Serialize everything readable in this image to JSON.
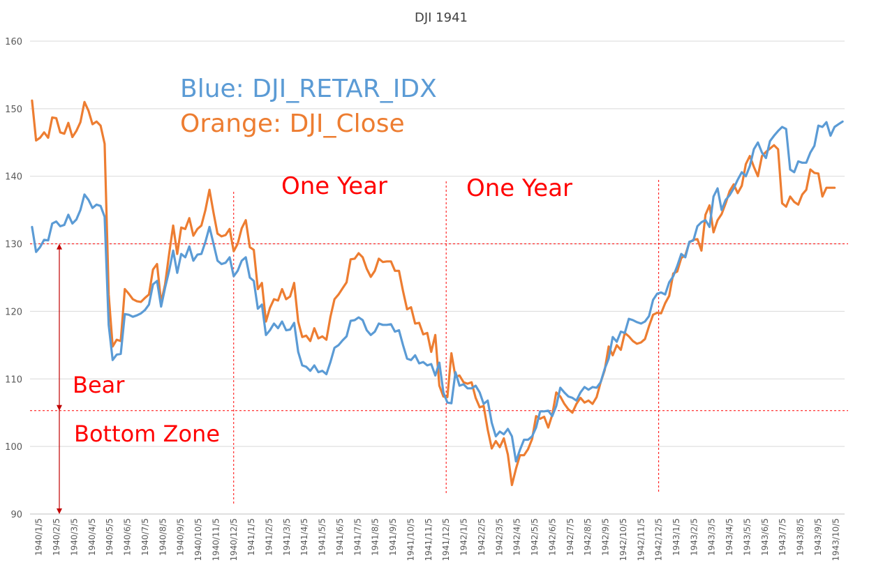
{
  "chart_data": {
    "type": "line",
    "title": "DJI 1941",
    "xlabel": "",
    "ylabel": "",
    "ylim": [
      90,
      160
    ],
    "yticks": [
      90,
      100,
      110,
      120,
      130,
      140,
      150,
      160
    ],
    "grid": "horizontal",
    "x_tick_labels": [
      "1940/1/5",
      "1940/2/5",
      "1940/3/5",
      "1940/4/5",
      "1940/5/5",
      "1940/6/5",
      "1940/7/5",
      "1940/8/5",
      "1940/9/5",
      "1940/10/5",
      "1940/11/5",
      "1940/12/5",
      "1941/1/5",
      "1941/2/5",
      "1941/3/5",
      "1941/4/5",
      "1941/5/5",
      "1941/6/5",
      "1941/7/5",
      "1941/8/5",
      "1941/9/5",
      "1941/10/5",
      "1941/11/5",
      "1941/12/5",
      "1942/1/5",
      "1942/2/5",
      "1942/3/5",
      "1942/4/5",
      "1942/5/5",
      "1942/6/5",
      "1942/7/5",
      "1942/8/5",
      "1942/9/5",
      "1942/10/5",
      "1942/11/5",
      "1942/12/5",
      "1943/1/5",
      "1943/2/5",
      "1943/3/5",
      "1943/4/5",
      "1943/5/5",
      "1943/6/5",
      "1943/7/5",
      "1943/8/5",
      "1943/9/5",
      "1943/10/5"
    ],
    "series": [
      {
        "name": "DJI_RETAR_IDX",
        "color": "#5b9bd5",
        "values": [
          132.5,
          128.8,
          129.5,
          130.6,
          130.5,
          133.0,
          133.3,
          132.6,
          132.8,
          134.3,
          133.0,
          133.6,
          135.0,
          137.3,
          136.5,
          135.3,
          135.8,
          135.6,
          134.0,
          118.0,
          112.8,
          113.6,
          113.7,
          119.6,
          119.5,
          119.2,
          119.4,
          119.7,
          120.2,
          121.0,
          124.0,
          124.5,
          120.7,
          123.5,
          126.0,
          129.0,
          125.7,
          128.5,
          128.0,
          129.6,
          127.5,
          128.4,
          128.5,
          130.3,
          132.5,
          130.0,
          127.5,
          127.0,
          127.2,
          128.0,
          125.2,
          126.0,
          127.5,
          128.0,
          125.0,
          124.5,
          120.4,
          121.0,
          116.5,
          117.2,
          118.2,
          117.5,
          118.5,
          117.2,
          117.3,
          118.3,
          114.0,
          112.0,
          111.8,
          111.2,
          112.0,
          111.0,
          111.2,
          110.7,
          112.5,
          114.6,
          115.0,
          115.7,
          116.3,
          118.6,
          118.7,
          119.1,
          118.7,
          117.2,
          116.5,
          117.0,
          118.2,
          118.0,
          118.0,
          118.1,
          117.0,
          117.2,
          115.0,
          113.0,
          112.8,
          113.5,
          112.3,
          112.5,
          112.0,
          112.2,
          110.5,
          112.4,
          108.0,
          106.5,
          106.4,
          111.0,
          109.0,
          109.2,
          108.6,
          108.6,
          109.0,
          108.0,
          106.3,
          106.8,
          103.5,
          101.5,
          102.2,
          101.8,
          102.6,
          101.5,
          97.8,
          99.5,
          101.0,
          101.0,
          101.5,
          102.8,
          105.2,
          105.2,
          105.3,
          104.5,
          106.0,
          108.7,
          108.0,
          107.4,
          107.2,
          106.8,
          108.0,
          108.8,
          108.4,
          108.8,
          108.7,
          109.5,
          111.5,
          113.0,
          116.2,
          115.5,
          117.0,
          116.8,
          118.9,
          118.7,
          118.4,
          118.2,
          118.5,
          119.3,
          121.7,
          122.6,
          122.8,
          122.5,
          124.3,
          125.2,
          126.7,
          128.5,
          128.0,
          130.3,
          130.5,
          132.6,
          133.2,
          133.5,
          132.5,
          137.0,
          138.2,
          135.0,
          136.5,
          137.2,
          138.2,
          139.5,
          140.6,
          140.0,
          141.5,
          144.0,
          145.0,
          143.5,
          142.7,
          145.2,
          146.0,
          146.7,
          147.3,
          147.0,
          141.0,
          140.6,
          142.2,
          142.0,
          142.0,
          143.5,
          144.5,
          147.5,
          147.3,
          148.0,
          146.0,
          147.3,
          147.7,
          148.1
        ]
      },
      {
        "name": "DJI_Close",
        "color": "#ed7d31",
        "values": [
          151.2,
          145.3,
          145.7,
          146.5,
          145.7,
          148.7,
          148.6,
          146.5,
          146.3,
          147.9,
          145.8,
          146.7,
          148.0,
          151.0,
          149.7,
          147.7,
          148.1,
          147.5,
          144.8,
          122.5,
          114.8,
          115.8,
          115.6,
          123.3,
          122.6,
          121.8,
          121.5,
          121.4,
          122.0,
          122.5,
          126.2,
          127.0,
          121.3,
          124.0,
          128.5,
          132.7,
          128.5,
          132.4,
          132.2,
          133.8,
          131.2,
          132.2,
          132.7,
          135.0,
          138.0,
          134.6,
          131.5,
          131.1,
          131.3,
          132.2,
          128.9,
          130.0,
          132.3,
          133.5,
          129.5,
          129.1,
          123.3,
          124.2,
          118.5,
          120.5,
          121.8,
          121.6,
          123.3,
          121.8,
          122.2,
          124.2,
          118.5,
          116.2,
          116.4,
          115.6,
          117.5,
          116.0,
          116.3,
          115.8,
          119.2,
          121.8,
          122.5,
          123.4,
          124.3,
          127.7,
          127.8,
          128.6,
          128.0,
          126.3,
          125.1,
          126.0,
          127.8,
          127.3,
          127.4,
          127.4,
          126.0,
          126.0,
          123.0,
          120.3,
          120.6,
          118.2,
          118.3,
          116.6,
          116.8,
          114.0,
          116.5,
          109.0,
          107.4,
          107.3,
          113.8,
          110.3,
          110.5,
          109.5,
          109.3,
          109.5,
          107.2,
          105.8,
          106.0,
          102.5,
          99.7,
          100.8,
          99.9,
          101.2,
          98.8,
          94.3,
          96.7,
          98.7,
          98.7,
          99.6,
          101.1,
          104.5,
          104.1,
          104.4,
          102.8,
          104.7,
          108.0,
          107.4,
          106.3,
          105.5,
          105.0,
          106.3,
          107.2,
          106.5,
          106.8,
          106.3,
          107.3,
          109.5,
          111.3,
          114.8,
          113.5,
          115.0,
          114.3,
          116.8,
          116.3,
          115.6,
          115.2,
          115.4,
          115.9,
          117.8,
          119.5,
          119.8,
          119.7,
          121.2,
          122.3,
          125.6,
          125.9,
          127.9,
          128.3,
          130.2,
          130.6,
          130.7,
          129.0,
          134.3,
          135.7,
          131.7,
          133.5,
          134.4,
          136.0,
          137.8,
          138.8,
          137.5,
          138.6,
          141.8,
          143.0,
          141.4,
          140.0,
          143.0,
          143.6,
          144.1,
          144.6,
          144.0,
          136.0,
          135.5,
          137.0,
          136.2,
          135.8,
          137.3,
          138.0,
          141.0,
          140.5,
          140.4,
          137.0,
          138.3,
          138.3,
          138.3
        ]
      }
    ],
    "annotations": {
      "legend_blue": "Blue: DJI_RETAR_IDX",
      "legend_orange": "Orange: DJI_Close",
      "one_year_1": "One Year",
      "one_year_2": "One Year",
      "bear": "Bear",
      "bottom_zone": "Bottom Zone"
    },
    "reference_lines": {
      "horizontal_values": [
        130,
        105.3
      ],
      "vertical_at_labels": [
        "1940/12/5",
        "1941/12/5",
        "1942/12/5"
      ]
    }
  }
}
